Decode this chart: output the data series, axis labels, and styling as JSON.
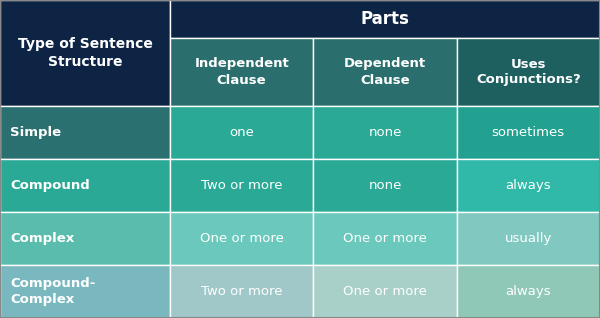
{
  "title": "Parts",
  "col_headers": [
    "Independent\nClause",
    "Dependent\nClause",
    "Uses\nConjunctions?"
  ],
  "row_headers": [
    "Simple",
    "Compound",
    "Complex",
    "Compound-\nComplex"
  ],
  "cells": [
    [
      "one",
      "none",
      "sometimes"
    ],
    [
      "Two or more",
      "none",
      "always"
    ],
    [
      "One or more",
      "One or more",
      "usually"
    ],
    [
      "Two or more",
      "One or more",
      "always"
    ]
  ],
  "top_left_label": "Type of Sentence\nStructure",
  "colors": {
    "top_left_bg": "#0d2444",
    "parts_bg": "#0d2444",
    "col_header_bg": [
      "#2a6e6e",
      "#2a6e6e",
      "#1e6060"
    ],
    "row0_header": "#2a7070",
    "row1_header": "#2aaa96",
    "row2_header": "#5abcac",
    "row3_header": "#7ab8c0",
    "row0_cells": [
      "#2aaa96",
      "#2aaa96",
      "#22a090"
    ],
    "row1_cells": [
      "#2aaa96",
      "#2aaa96",
      "#30b8a8"
    ],
    "row2_cells": [
      "#6ac8bc",
      "#6ac8bc",
      "#80c8c0"
    ],
    "row3_cells": [
      "#a0c8c8",
      "#a8d0c8",
      "#90c8b8"
    ]
  },
  "figsize": [
    6.0,
    3.18
  ],
  "dpi": 100
}
